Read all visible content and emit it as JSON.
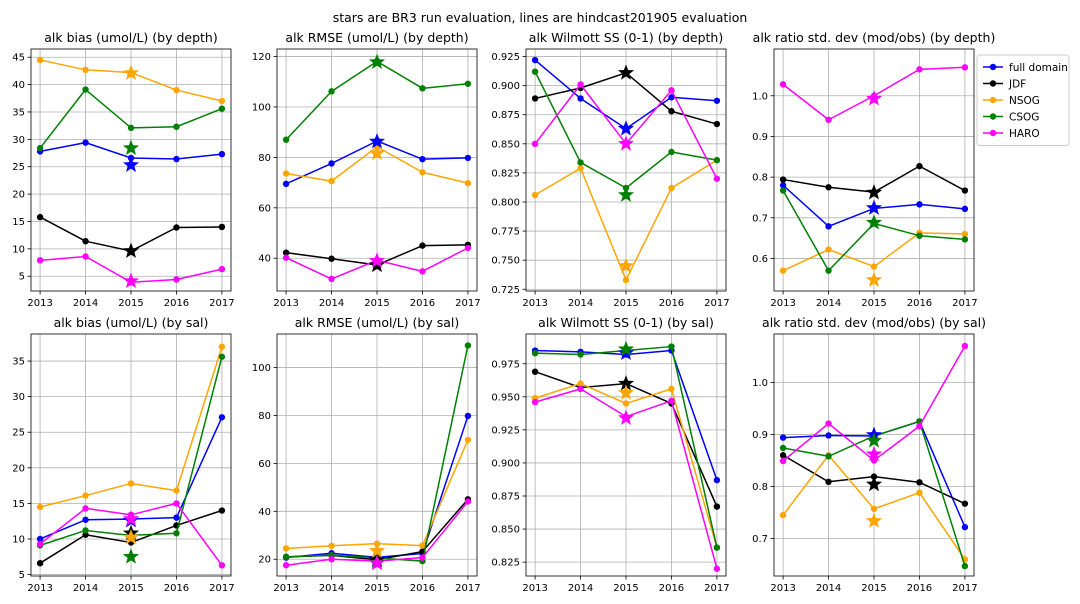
{
  "figure": {
    "suptitle": "stars are BR3 run evaluation, lines are hindcast201905 evaluation",
    "colors": {
      "full domain": "#0000ff",
      "JDF": "#000000",
      "NSOG": "#ffa500",
      "CSOG": "#008000",
      "HARO": "#ff00ff"
    },
    "legend": {
      "location": "upper-right-outside",
      "entries": [
        "full domain",
        "JDF",
        "NSOG",
        "CSOG",
        "HARO"
      ]
    },
    "star_year": 2015
  },
  "chart_data": [
    {
      "type": "line",
      "title": "alk bias (umol/L) (by depth)",
      "x": [
        2013,
        2014,
        2015,
        2016,
        2017
      ],
      "ylim": [
        2.3,
        46.5
      ],
      "yticks": [
        5,
        10,
        15,
        20,
        25,
        30,
        35,
        40,
        45
      ],
      "ytick_labels": [
        "5",
        "10",
        "15",
        "20",
        "25",
        "30",
        "35",
        "40",
        "45"
      ],
      "grid": true,
      "series": [
        {
          "name": "full domain",
          "values": [
            27.8,
            29.4,
            26.6,
            26.4,
            27.3
          ],
          "star": 25.3
        },
        {
          "name": "JDF",
          "values": [
            15.8,
            11.4,
            9.6,
            13.9,
            14.0
          ],
          "star": 9.6
        },
        {
          "name": "NSOG",
          "values": [
            44.5,
            42.7,
            42.2,
            39.0,
            37.0
          ],
          "star": 42.1
        },
        {
          "name": "CSOG",
          "values": [
            28.4,
            39.1,
            32.1,
            32.3,
            35.6
          ],
          "star": 28.4
        },
        {
          "name": "HARO",
          "values": [
            7.9,
            8.6,
            3.9,
            4.4,
            6.3
          ],
          "star": 4.1
        }
      ]
    },
    {
      "type": "line",
      "title": "alk RMSE (umol/L) (by depth)",
      "x": [
        2013,
        2014,
        2015,
        2016,
        2017
      ],
      "ylim": [
        27,
        123
      ],
      "yticks": [
        40,
        60,
        80,
        100,
        120
      ],
      "ytick_labels": [
        "40",
        "60",
        "80",
        "100",
        "120"
      ],
      "grid": true,
      "series": [
        {
          "name": "full domain",
          "values": [
            69.5,
            77.6,
            86.5,
            79.3,
            79.8
          ],
          "star": 86.3
        },
        {
          "name": "JDF",
          "values": [
            42.2,
            39.8,
            37.3,
            45.0,
            45.3
          ],
          "star": 37.2
        },
        {
          "name": "NSOG",
          "values": [
            73.6,
            70.6,
            84.2,
            74.1,
            69.8
          ],
          "star": 81.6
        },
        {
          "name": "CSOG",
          "values": [
            87.0,
            106.2,
            118.1,
            107.4,
            109.2
          ],
          "star": 117.8
        },
        {
          "name": "HARO",
          "values": [
            40.2,
            31.8,
            39.2,
            34.8,
            44.1
          ],
          "star": 39.0
        }
      ]
    },
    {
      "type": "line",
      "title": "alk Wilmott SS (0-1) (by depth)",
      "x": [
        2013,
        2014,
        2015,
        2016,
        2017
      ],
      "ylim": [
        0.7235,
        0.9315
      ],
      "yticks": [
        0.725,
        0.75,
        0.775,
        0.8,
        0.825,
        0.85,
        0.875,
        0.9,
        0.925
      ],
      "ytick_labels": [
        "0.725",
        "0.750",
        "0.775",
        "0.800",
        "0.825",
        "0.850",
        "0.875",
        "0.900",
        "0.925"
      ],
      "grid": true,
      "series": [
        {
          "name": "full domain",
          "values": [
            0.922,
            0.889,
            0.863,
            0.89,
            0.887
          ],
          "star": 0.863
        },
        {
          "name": "JDF",
          "values": [
            0.889,
            0.898,
            0.911,
            0.878,
            0.867
          ],
          "star": 0.911
        },
        {
          "name": "NSOG",
          "values": [
            0.806,
            0.829,
            0.733,
            0.812,
            0.836
          ],
          "star": 0.745
        },
        {
          "name": "CSOG",
          "values": [
            0.912,
            0.834,
            0.812,
            0.843,
            0.836
          ],
          "star": 0.806
        },
        {
          "name": "HARO",
          "values": [
            0.85,
            0.901,
            0.85,
            0.896,
            0.82
          ],
          "star": 0.85
        }
      ]
    },
    {
      "type": "line",
      "title": "alk ratio std. dev (mod/obs) (by depth)",
      "x": [
        2013,
        2014,
        2015,
        2016,
        2017
      ],
      "ylim": [
        0.52,
        1.115
      ],
      "yticks": [
        0.6,
        0.7,
        0.8,
        0.9,
        1.0
      ],
      "ytick_labels": [
        "0.6",
        "0.7",
        "0.8",
        "0.9",
        "1.0"
      ],
      "grid": true,
      "series": [
        {
          "name": "full domain",
          "values": [
            0.78,
            0.679,
            0.723,
            0.733,
            0.722
          ],
          "star": 0.724
        },
        {
          "name": "JDF",
          "values": [
            0.794,
            0.775,
            0.763,
            0.827,
            0.767
          ],
          "star": 0.762
        },
        {
          "name": "NSOG",
          "values": [
            0.57,
            0.622,
            0.58,
            0.663,
            0.66
          ],
          "star": 0.547
        },
        {
          "name": "CSOG",
          "values": [
            0.767,
            0.57,
            0.686,
            0.656,
            0.647
          ],
          "star": 0.688
        },
        {
          "name": "HARO",
          "values": [
            1.028,
            0.941,
            1.0,
            1.065,
            1.07
          ],
          "star": 0.993
        }
      ]
    },
    {
      "type": "line",
      "title": "alk bias (umol/L) (by sal)",
      "x": [
        2013,
        2014,
        2015,
        2016,
        2017
      ],
      "ylim": [
        4.8,
        38.8
      ],
      "yticks": [
        5,
        10,
        15,
        20,
        25,
        30,
        35
      ],
      "ytick_labels": [
        "5",
        "10",
        "15",
        "20",
        "25",
        "30",
        "35"
      ],
      "grid": true,
      "series": [
        {
          "name": "full domain",
          "values": [
            10.0,
            12.7,
            12.8,
            13.0,
            27.1
          ],
          "star": 12.6
        },
        {
          "name": "JDF",
          "values": [
            6.6,
            10.6,
            9.5,
            11.9,
            14.0
          ],
          "star": 10.8
        },
        {
          "name": "NSOG",
          "values": [
            14.5,
            16.1,
            17.8,
            16.8,
            37.0
          ],
          "star": 10.2
        },
        {
          "name": "CSOG",
          "values": [
            9.1,
            11.2,
            10.5,
            10.8,
            35.6
          ],
          "star": 7.5
        },
        {
          "name": "HARO",
          "values": [
            9.3,
            14.3,
            13.4,
            15.0,
            6.3
          ],
          "star": 12.8
        }
      ]
    },
    {
      "type": "line",
      "title": "alk RMSE (umol/L) (by sal)",
      "x": [
        2013,
        2014,
        2015,
        2016,
        2017
      ],
      "ylim": [
        13,
        114
      ],
      "yticks": [
        20,
        40,
        60,
        80,
        100
      ],
      "ytick_labels": [
        "20",
        "40",
        "60",
        "80",
        "100"
      ],
      "grid": true,
      "series": [
        {
          "name": "full domain",
          "values": [
            20.7,
            22.5,
            20.8,
            22.4,
            79.8
          ],
          "star": 19.8
        },
        {
          "name": "JDF",
          "values": [
            21.0,
            21.6,
            19.8,
            23.2,
            45.0
          ],
          "star": 19.6
        },
        {
          "name": "NSOG",
          "values": [
            24.5,
            25.6,
            26.5,
            25.7,
            69.8
          ],
          "star": 23.5
        },
        {
          "name": "CSOG",
          "values": [
            21.0,
            21.7,
            20.5,
            19.2,
            109.2
          ],
          "star": 18.6
        },
        {
          "name": "HARO",
          "values": [
            17.5,
            20.0,
            19.2,
            20.7,
            44.1
          ],
          "star": 18.3
        }
      ]
    },
    {
      "type": "line",
      "title": "alk Wilmott SS (0-1) (by sal)",
      "x": [
        2013,
        2014,
        2015,
        2016,
        2017
      ],
      "ylim": [
        0.8145,
        0.9975
      ],
      "yticks": [
        0.825,
        0.85,
        0.875,
        0.9,
        0.925,
        0.95,
        0.975
      ],
      "ytick_labels": [
        "0.825",
        "0.850",
        "0.875",
        "0.900",
        "0.925",
        "0.950",
        "0.975"
      ],
      "grid": true,
      "series": [
        {
          "name": "full domain",
          "values": [
            0.985,
            0.984,
            0.982,
            0.985,
            0.887
          ],
          "star": 0.983
        },
        {
          "name": "JDF",
          "values": [
            0.969,
            0.957,
            0.96,
            0.945,
            0.867
          ],
          "star": 0.96
        },
        {
          "name": "NSOG",
          "values": [
            0.949,
            0.96,
            0.945,
            0.956,
            0.836
          ],
          "star": 0.953
        },
        {
          "name": "CSOG",
          "values": [
            0.983,
            0.982,
            0.985,
            0.988,
            0.836
          ],
          "star": 0.986
        },
        {
          "name": "HARO",
          "values": [
            0.946,
            0.956,
            0.935,
            0.947,
            0.82
          ],
          "star": 0.934
        }
      ]
    },
    {
      "type": "line",
      "title": "alk ratio std. dev (mod/obs) (by sal)",
      "x": [
        2013,
        2014,
        2015,
        2016,
        2017
      ],
      "ylim": [
        0.628,
        1.093
      ],
      "yticks": [
        0.7,
        0.8,
        0.9,
        1.0
      ],
      "ytick_labels": [
        "0.7",
        "0.8",
        "0.9",
        "1.0"
      ],
      "grid": true,
      "series": [
        {
          "name": "full domain",
          "values": [
            0.894,
            0.898,
            0.897,
            0.925,
            0.722
          ],
          "star": 0.899
        },
        {
          "name": "JDF",
          "values": [
            0.86,
            0.809,
            0.819,
            0.808,
            0.767
          ],
          "star": 0.804
        },
        {
          "name": "NSOG",
          "values": [
            0.745,
            0.86,
            0.757,
            0.788,
            0.66
          ],
          "star": 0.734
        },
        {
          "name": "CSOG",
          "values": [
            0.874,
            0.858,
            0.897,
            0.925,
            0.647
          ],
          "star": 0.888
        },
        {
          "name": "HARO",
          "values": [
            0.849,
            0.921,
            0.85,
            0.916,
            1.07
          ],
          "star": 0.862
        }
      ]
    }
  ]
}
